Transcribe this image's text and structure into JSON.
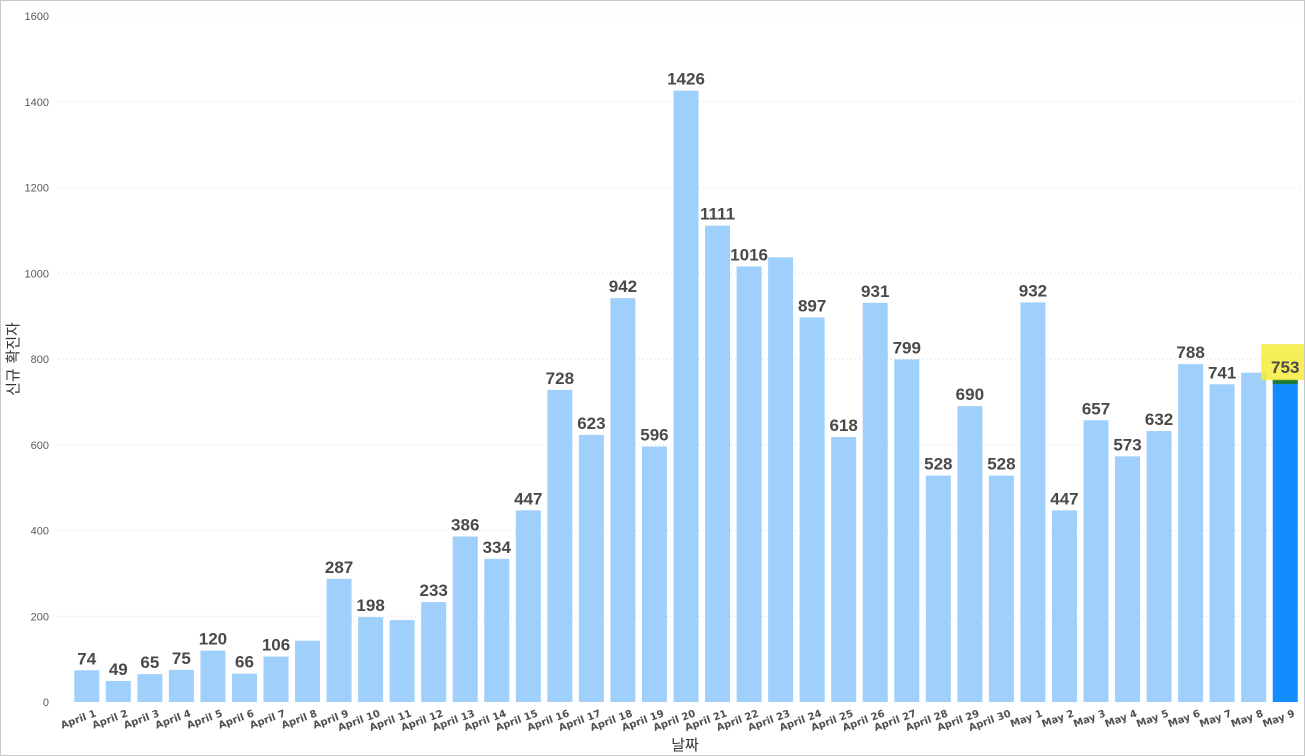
{
  "chart_data": {
    "type": "bar",
    "xlabel": "날짜",
    "ylabel": "신규 확진자",
    "ylim": [
      0,
      1600
    ],
    "yticks": [
      0,
      200,
      400,
      600,
      800,
      1000,
      1200,
      1400,
      1600
    ],
    "grid": true,
    "categories": [
      "April 1",
      "April 2",
      "April 3",
      "April 4",
      "April 5",
      "April 6",
      "April 7",
      "April 8",
      "April 9",
      "April 10",
      "April 11",
      "April 12",
      "April 13",
      "April 14",
      "April 15",
      "April 16",
      "April 17",
      "April 18",
      "April 19",
      "April 20",
      "April 21",
      "April 22",
      "April 23",
      "April 24",
      "April 25",
      "April 26",
      "April 27",
      "April 28",
      "April 29",
      "April 30",
      "May 1",
      "May 2",
      "May 3",
      "May 4",
      "May 5",
      "May 6",
      "May 7",
      "May 8",
      "May 9"
    ],
    "values": [
      74,
      49,
      65,
      75,
      120,
      66,
      106,
      143,
      287,
      198,
      191,
      233,
      386,
      334,
      447,
      728,
      623,
      942,
      596,
      1426,
      1111,
      1016,
      1037,
      897,
      618,
      931,
      799,
      528,
      690,
      528,
      932,
      447,
      657,
      573,
      632,
      788,
      741,
      768,
      753
    ],
    "labels": [
      "74",
      "49",
      "65",
      "75",
      "120",
      "66",
      "106",
      "",
      "287",
      "198",
      "",
      "233",
      "386",
      "334",
      "447",
      "728",
      "623",
      "942",
      "596",
      "1426",
      "1111",
      "1016",
      "",
      "897",
      "618",
      "931",
      "799",
      "528",
      "690",
      "528",
      "932",
      "447",
      "657",
      "573",
      "632",
      "788",
      "741",
      "",
      "753"
    ],
    "highlight_index": 38,
    "colors": {
      "bar": "#9fd0fb",
      "highlight_bar": "#118dff",
      "highlight_top": "#1d7a3a",
      "highlight_label_bg": "#f5ec3a",
      "label": "#4a4a4a"
    }
  }
}
